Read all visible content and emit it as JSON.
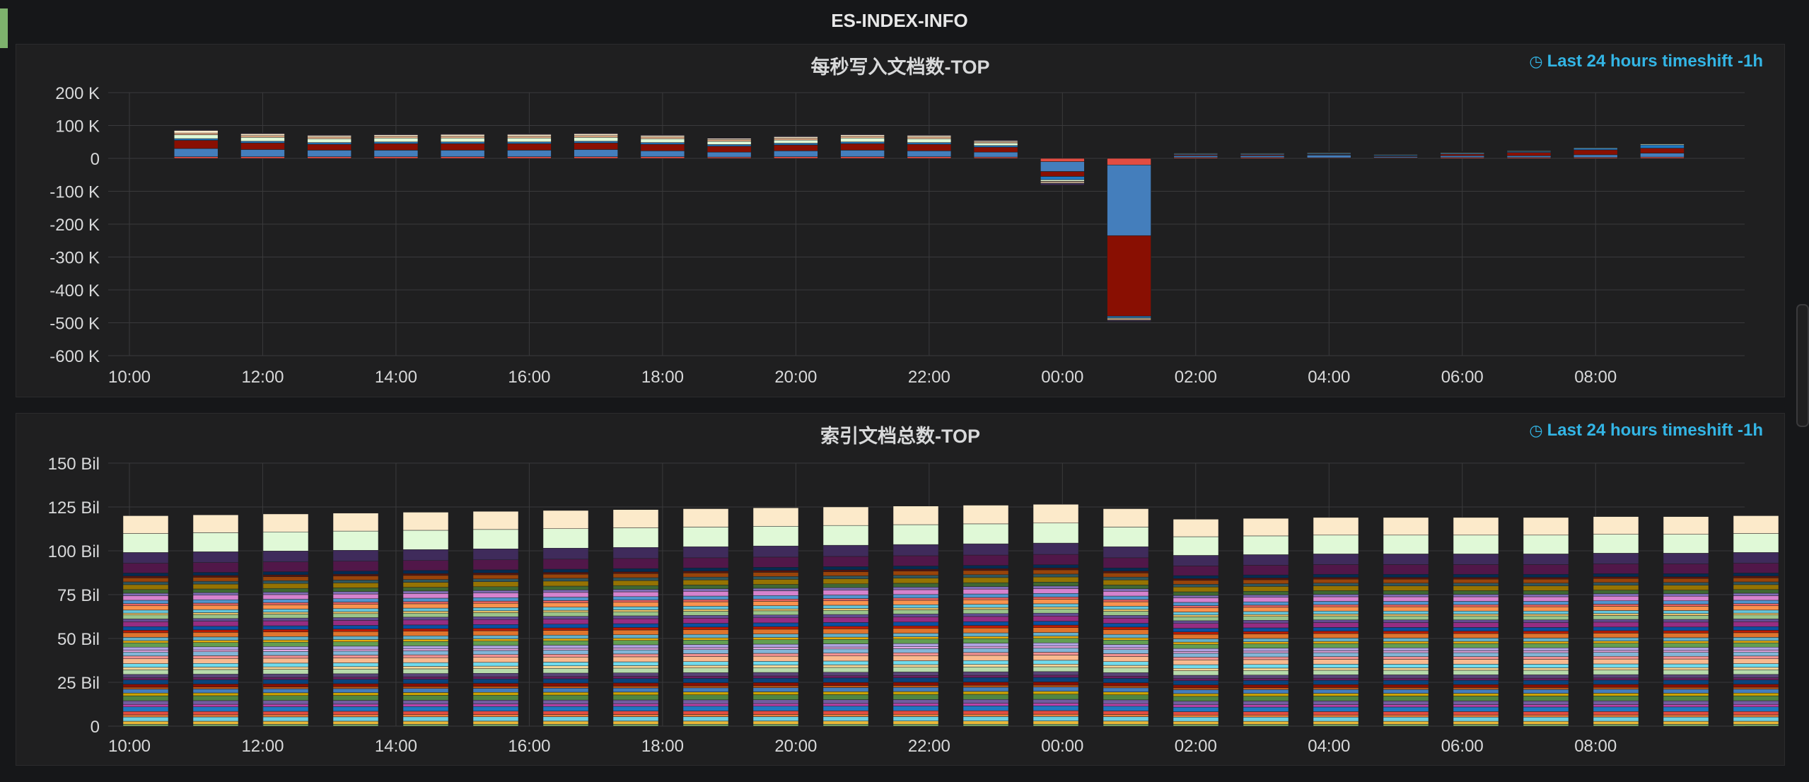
{
  "row": {
    "title": "ES-INDEX-INFO"
  },
  "panels": [
    {
      "title": "每秒写入文档数-TOP",
      "timeshift": "Last 24 hours timeshift -1h",
      "clock_icon": "clock-icon"
    },
    {
      "title": "索引文档总数-TOP",
      "timeshift": "Last 24 hours timeshift -1h",
      "clock_icon": "clock-icon"
    }
  ],
  "chart_data": [
    {
      "type": "bar",
      "stacked": true,
      "title": "每秒写入文档数-TOP",
      "x_ticks": [
        "10:00",
        "12:00",
        "14:00",
        "16:00",
        "18:00",
        "20:00",
        "22:00",
        "00:00",
        "02:00",
        "04:00",
        "06:00",
        "08:00"
      ],
      "y_ticks": [
        "200 K",
        "100 K",
        "0",
        "-100 K",
        "-200 K",
        "-300 K",
        "-400 K",
        "-500 K",
        "-600 K"
      ],
      "ylim": [
        -600000,
        200000
      ],
      "grid": true,
      "categories": [
        "11:00",
        "12:00",
        "13:00",
        "14:00",
        "15:00",
        "16:00",
        "17:00",
        "18:00",
        "19:00",
        "20:00",
        "21:00",
        "22:00",
        "23:00",
        "00:00",
        "01:00",
        "02:00",
        "03:00",
        "04:00",
        "05:00",
        "06:00",
        "07:00",
        "08:00",
        "09:00"
      ],
      "series": [
        {
          "color": "#e24d42",
          "values": [
            5000,
            5000,
            5000,
            5000,
            5000,
            5000,
            5000,
            5000,
            4000,
            5000,
            5000,
            5000,
            4000,
            -10000,
            -20000,
            3000,
            3000,
            2000,
            2000,
            3000,
            3000,
            3000,
            4000
          ]
        },
        {
          "color": "#447ebc",
          "values": [
            25000,
            22000,
            20000,
            20000,
            20000,
            20000,
            22000,
            18000,
            15000,
            18000,
            20000,
            18000,
            15000,
            -30000,
            -215000,
            5000,
            5000,
            8000,
            3000,
            5000,
            5000,
            8000,
            12000
          ]
        },
        {
          "color": "#890f02",
          "values": [
            25000,
            20000,
            18000,
            20000,
            20000,
            20000,
            20000,
            20000,
            18000,
            18000,
            20000,
            20000,
            15000,
            -15000,
            -245000,
            3000,
            3000,
            2000,
            2000,
            5000,
            10000,
            15000,
            15000
          ]
        },
        {
          "color": "#1f78c1",
          "values": [
            5000,
            5000,
            5000,
            5000,
            5000,
            5000,
            5000,
            5000,
            5000,
            5000,
            5000,
            5000,
            5000,
            -10000,
            -5000,
            3000,
            3000,
            3000,
            3000,
            3000,
            3000,
            5000,
            10000
          ]
        },
        {
          "color": "#e0f9d7",
          "values": [
            12000,
            12000,
            12000,
            12000,
            12000,
            12000,
            12000,
            12000,
            10000,
            10000,
            12000,
            12000,
            8000,
            -5000,
            -3000,
            2000,
            2000,
            2000,
            2000,
            2000,
            2000,
            2000,
            3000
          ]
        },
        {
          "color": "#f9ba8f",
          "values": [
            5000,
            5000,
            5000,
            5000,
            5000,
            5000,
            5000,
            5000,
            5000,
            5000,
            5000,
            5000,
            3000,
            -3000,
            -3000,
            1000,
            1000,
            1000,
            1000,
            1000,
            1000,
            1000,
            1000
          ]
        },
        {
          "color": "#fceaca",
          "values": [
            8000,
            6000,
            5000,
            5000,
            6000,
            6000,
            6000,
            5000,
            4000,
            5000,
            5000,
            5000,
            4000,
            -3000,
            -2000,
            1000,
            1000,
            1000,
            1000,
            1000,
            1000,
            1000,
            1000
          ]
        },
        {
          "color": "#3f2b5b",
          "values": [
            2000,
            2000,
            2000,
            2000,
            2000,
            2000,
            2000,
            2000,
            2000,
            2000,
            2000,
            2000,
            2000,
            -5000,
            -3000,
            1000,
            1000,
            1000,
            1000,
            1000,
            1000,
            1000,
            1000
          ]
        }
      ]
    },
    {
      "type": "bar",
      "stacked": true,
      "title": "索引文档总数-TOP",
      "x_ticks": [
        "10:00",
        "12:00",
        "14:00",
        "16:00",
        "18:00",
        "20:00",
        "22:00",
        "00:00",
        "02:00",
        "04:00",
        "06:00",
        "08:00"
      ],
      "y_ticks": [
        "150 Bil",
        "125 Bil",
        "100 Bil",
        "75 Bil",
        "50 Bil",
        "25 Bil",
        "0"
      ],
      "ylim": [
        0,
        150
      ],
      "grid": true,
      "categories": [
        "10:00",
        "11:00",
        "12:00",
        "13:00",
        "14:00",
        "15:00",
        "16:00",
        "17:00",
        "18:00",
        "19:00",
        "20:00",
        "21:00",
        "22:00",
        "23:00",
        "00:00",
        "01:00",
        "02:00",
        "03:00",
        "04:00",
        "05:00",
        "06:00",
        "07:00",
        "08:00",
        "09:00"
      ],
      "totals": [
        120,
        120.5,
        121,
        121.5,
        122,
        122.5,
        123,
        123.5,
        124,
        124.5,
        125,
        125.5,
        126,
        126.5,
        124,
        118,
        118.5,
        119,
        119,
        119,
        119,
        119.5,
        119.5,
        120
      ],
      "series_colors": [
        "#7eb26d",
        "#eab839",
        "#6ed0e0",
        "#ef843c",
        "#e24d42",
        "#1f78c1",
        "#ba43a9",
        "#705da0",
        "#508642",
        "#cca300",
        "#447ebc",
        "#c15c17",
        "#890f02",
        "#0a437c",
        "#6d1f62",
        "#584477",
        "#b7dbab",
        "#f4d598",
        "#70dbed",
        "#f9ba8f",
        "#f29191",
        "#82b5d8",
        "#e5a8e2",
        "#aea2e0",
        "#629e51",
        "#e5ac0e",
        "#64b0c8",
        "#e0752d",
        "#bf1b00",
        "#0a50a1",
        "#962d82",
        "#614d93",
        "#9ac48a",
        "#f2c96d",
        "#65c5db",
        "#f9934e",
        "#ea6460",
        "#5195ce",
        "#d683ce",
        "#806eb7",
        "#3f6833",
        "#967302",
        "#2f575e",
        "#99440a",
        "#58140c",
        "#052b51",
        "#511749",
        "#3f2b5b",
        "#e0f9d7",
        "#fceaca"
      ]
    }
  ]
}
